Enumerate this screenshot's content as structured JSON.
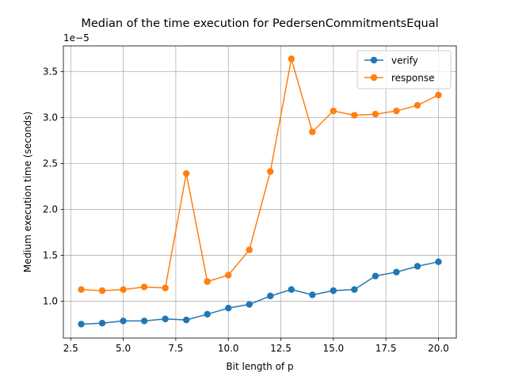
{
  "chart_data": {
    "type": "line",
    "title": "Median of the time execution for PedersenCommitmentsEqual",
    "xlabel": "Bit length of p",
    "ylabel": "Medium execution time (seconds)",
    "y_offset_label": "1e−5",
    "y_scale": 1e-05,
    "xlim": [
      2.15,
      20.85
    ],
    "ylim": [
      6e-06,
      3.78e-05
    ],
    "xticks": [
      2.5,
      5.0,
      7.5,
      10.0,
      12.5,
      15.0,
      17.5,
      20.0
    ],
    "xtick_labels": [
      "2.5",
      "5.0",
      "7.5",
      "10.0",
      "12.5",
      "15.0",
      "17.5",
      "20.0"
    ],
    "yticks": [
      1.0,
      1.5,
      2.0,
      2.5,
      3.0,
      3.5
    ],
    "ytick_labels": [
      "1.0",
      "1.5",
      "2.0",
      "2.5",
      "3.0",
      "3.5"
    ],
    "grid": true,
    "legend_position": "upper right",
    "x": [
      3,
      4,
      5,
      6,
      7,
      8,
      9,
      10,
      11,
      12,
      13,
      14,
      15,
      16,
      17,
      18,
      19,
      20
    ],
    "series": [
      {
        "name": "verify",
        "color": "#1f77b4",
        "values": [
          7.51e-06,
          7.62e-06,
          7.86e-06,
          7.86e-06,
          8.08e-06,
          7.97e-06,
          8.59e-06,
          9.26e-06,
          9.66e-06,
          1.058e-05,
          1.128e-05,
          1.07e-05,
          1.116e-05,
          1.128e-05,
          1.275e-05,
          1.318e-05,
          1.381e-05,
          1.43e-05
        ]
      },
      {
        "name": "response",
        "color": "#ff7f0e",
        "values": [
          1.128e-05,
          1.116e-05,
          1.128e-05,
          1.156e-05,
          1.145e-05,
          2.391e-05,
          1.215e-05,
          1.285e-05,
          1.56e-05,
          2.413e-05,
          3.639e-05,
          2.844e-05,
          3.072e-05,
          3.025e-05,
          3.037e-05,
          3.072e-05,
          3.133e-05,
          3.245e-05
        ]
      }
    ]
  }
}
